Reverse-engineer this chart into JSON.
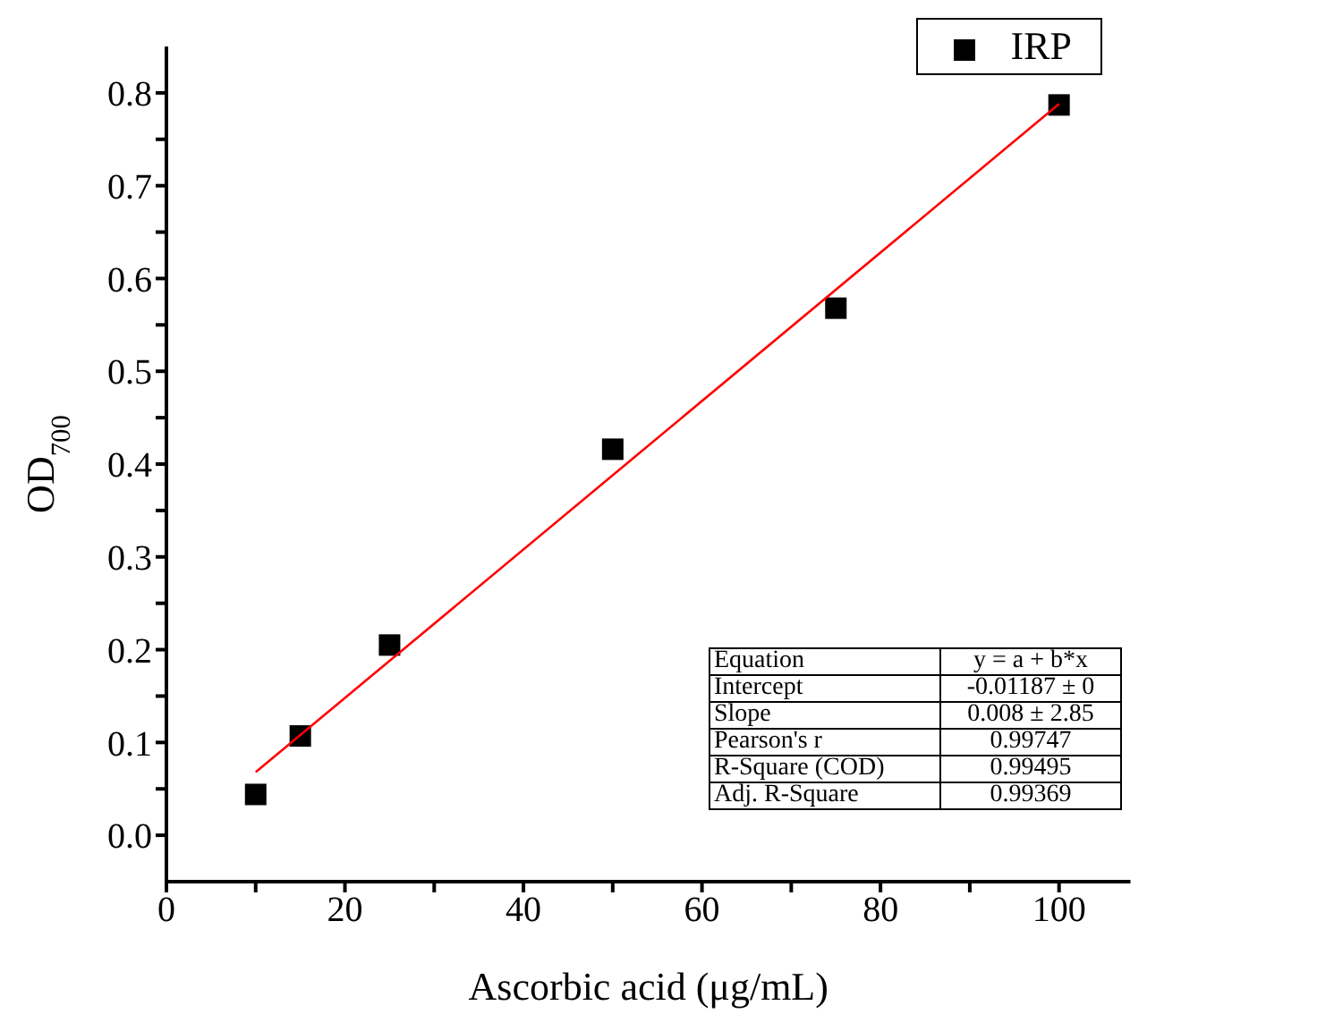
{
  "chart_data": {
    "type": "scatter",
    "xlabel": "Ascorbic acid (μg/mL)",
    "ylabel": "OD$_{700}$",
    "xlim": [
      0,
      108
    ],
    "xticks": [
      0,
      {
        "value": 10,
        "label": null
      },
      20,
      {
        "value": 30,
        "label": null
      },
      40,
      {
        "value": 50,
        "label": null
      },
      60,
      {
        "value": 70,
        "label": null
      },
      80,
      {
        "value": 90,
        "label": null
      },
      100
    ],
    "ylim": [
      -0.05,
      0.85
    ],
    "yticks": [
      "0.0",
      {
        "value": 0.05,
        "label": null
      },
      0.1,
      {
        "value": 0.15,
        "label": null
      },
      0.2,
      {
        "value": 0.25,
        "label": null
      },
      0.3,
      {
        "value": 0.35,
        "label": null
      },
      0.4,
      {
        "value": 0.45,
        "label": null
      },
      0.5,
      {
        "value": 0.55,
        "label": null
      },
      0.6,
      {
        "value": 0.65,
        "label": null
      },
      0.7,
      {
        "value": 0.75,
        "label": null
      },
      0.8
    ],
    "grid": false,
    "legend": "top right",
    "marker": "square",
    "series": [
      {
        "name": "IRP",
        "color": "#000000",
        "x": [
          10,
          15,
          25,
          50,
          75,
          100
        ],
        "values": [
          0.044,
          0.107,
          0.205,
          0.416,
          0.568,
          0.787
        ]
      },
      {
        "type": "line",
        "color": "#ff0000",
        "marker": "none",
        "x": [
          10,
          100
        ],
        "values": [
          0.068,
          0.788
        ]
      }
    ],
    "annotations": [
      "Equation",
      "y = a + b*x",
      "Intercept",
      "-0.01187 ± 0",
      "Slope",
      "0.008 ± 2.85",
      "Pearson's r",
      "0.99747",
      "R-Square (COD)",
      "0.99495",
      "Adj. R-Square",
      "0.99369"
    ]
  }
}
